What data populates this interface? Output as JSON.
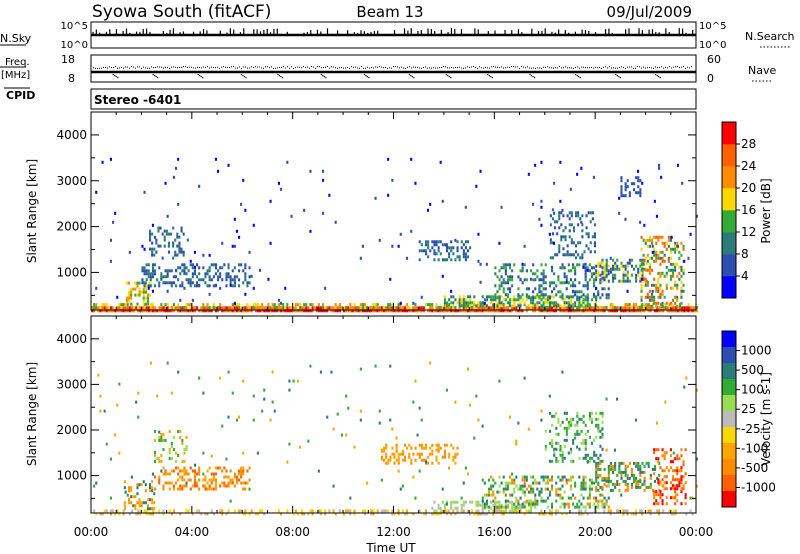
{
  "header": {
    "title": "Syowa South (fitACF)",
    "beam": "Beam 13",
    "date": "09/Jul/2009"
  },
  "status_panels": {
    "nsky_label": "N.Sky",
    "nsky_ticks": [
      "10^5",
      "10^0"
    ],
    "nsearch_label": "N.Search",
    "nsearch_ticks": [
      "10^5",
      "10^0"
    ],
    "freq_label_line1": "Freq.",
    "freq_label_line2": "[MHz]",
    "freq_ticks": [
      "18",
      "8"
    ],
    "nave_label": "Nave",
    "nave_ticks": [
      "60",
      "0"
    ],
    "cpid_label": "CPID",
    "cpid_value": "Stereo -6401"
  },
  "x_axis": {
    "title": "Time UT",
    "ticks": [
      "00:00",
      "04:00",
      "08:00",
      "12:00",
      "16:00",
      "20:00",
      "00:00"
    ],
    "range_hours": [
      0,
      24
    ]
  },
  "chart_data": [
    {
      "type": "heatmap",
      "parameter": "power",
      "ylabel": "Slant Range [km]",
      "yticks": [
        "1000",
        "2000",
        "3000",
        "4000"
      ],
      "ylim": [
        180,
        4500
      ],
      "colorbar_label": "Power [dB]",
      "colorbar_ticks": [
        "4",
        "8",
        "12",
        "16",
        "20",
        "24",
        "28"
      ],
      "colorbar_colors": [
        "#0000ff",
        "#2c4fb0",
        "#2b7c78",
        "#33aa33",
        "#ffd700",
        "#ff8c00",
        "#ff6000",
        "#ff0000"
      ],
      "regions": [
        {
          "t": [
            0.0,
            24.0
          ],
          "r": [
            180,
            260
          ],
          "dens": 0.9,
          "cols": [
            5,
            6,
            7
          ]
        },
        {
          "t": [
            0.0,
            24.0
          ],
          "r": [
            260,
            330
          ],
          "dens": 0.45,
          "cols": [
            3,
            4,
            5
          ]
        },
        {
          "t": [
            1.3,
            2.3
          ],
          "r": [
            300,
            800
          ],
          "dens": 0.4,
          "cols": [
            3,
            4,
            5
          ]
        },
        {
          "t": [
            2.0,
            6.3
          ],
          "r": [
            700,
            1200
          ],
          "dens": 0.38,
          "cols": [
            1,
            2
          ]
        },
        {
          "t": [
            2.3,
            3.8
          ],
          "r": [
            1300,
            2000
          ],
          "dens": 0.3,
          "cols": [
            1,
            2
          ]
        },
        {
          "t": [
            13.0,
            15.0
          ],
          "r": [
            1300,
            1700
          ],
          "dens": 0.4,
          "cols": [
            1,
            2
          ]
        },
        {
          "t": [
            14.0,
            20.0
          ],
          "r": [
            300,
            500
          ],
          "dens": 0.55,
          "cols": [
            2,
            3,
            4
          ]
        },
        {
          "t": [
            16.0,
            20.5
          ],
          "r": [
            450,
            1200
          ],
          "dens": 0.3,
          "cols": [
            1,
            2,
            3
          ]
        },
        {
          "t": [
            18.2,
            20.0
          ],
          "r": [
            1300,
            2400
          ],
          "dens": 0.28,
          "cols": [
            1,
            2
          ]
        },
        {
          "t": [
            20.0,
            22.0
          ],
          "r": [
            800,
            1300
          ],
          "dens": 0.45,
          "cols": [
            1,
            2,
            3,
            4
          ]
        },
        {
          "t": [
            21.8,
            23.5
          ],
          "r": [
            250,
            1800
          ],
          "dens": 0.35,
          "cols": [
            2,
            3,
            4,
            5,
            6
          ]
        },
        {
          "t": [
            21.0,
            21.8
          ],
          "r": [
            2700,
            3100
          ],
          "dens": 0.3,
          "cols": [
            1
          ]
        },
        {
          "t": [
            0.0,
            24.0
          ],
          "r": [
            300,
            3500
          ],
          "dens": 0.012,
          "cols": [
            0,
            1
          ]
        }
      ]
    },
    {
      "type": "heatmap",
      "parameter": "velocity",
      "ylabel": "Slant Range [km]",
      "yticks": [
        "1000",
        "2000",
        "3000",
        "4000"
      ],
      "ylim": [
        180,
        4500
      ],
      "colorbar_label": "Velocity [m s-1]",
      "colorbar_ticks": [
        "1000",
        "500",
        "100",
        "25",
        "-25",
        "-100",
        "-500",
        "-1000"
      ],
      "colorbar_colors": [
        "#0000ff",
        "#2c4fb0",
        "#2b7c78",
        "#33aa33",
        "#99dd55",
        "#bbbbbb",
        "#ffd700",
        "#ffa500",
        "#ff8c00",
        "#ff6000",
        "#ff0000"
      ],
      "regions": [
        {
          "t": [
            0.0,
            24.0
          ],
          "r": [
            180,
            260
          ],
          "dens": 0.4,
          "cols": [
            5,
            6,
            7
          ]
        },
        {
          "t": [
            13.5,
            17.5
          ],
          "r": [
            220,
            450
          ],
          "dens": 0.5,
          "cols": [
            4,
            5
          ]
        },
        {
          "t": [
            1.3,
            2.5
          ],
          "r": [
            300,
            900
          ],
          "dens": 0.35,
          "cols": [
            7,
            8,
            2
          ]
        },
        {
          "t": [
            2.5,
            6.3
          ],
          "r": [
            700,
            1200
          ],
          "dens": 0.38,
          "cols": [
            7,
            8,
            9
          ]
        },
        {
          "t": [
            2.5,
            3.8
          ],
          "r": [
            1300,
            2000
          ],
          "dens": 0.25,
          "cols": [
            3,
            4,
            7
          ]
        },
        {
          "t": [
            11.5,
            14.5
          ],
          "r": [
            1300,
            1700
          ],
          "dens": 0.35,
          "cols": [
            7,
            8
          ]
        },
        {
          "t": [
            15.5,
            20.5
          ],
          "r": [
            300,
            1000
          ],
          "dens": 0.35,
          "cols": [
            2,
            3,
            4,
            8
          ]
        },
        {
          "t": [
            18.0,
            20.3
          ],
          "r": [
            1300,
            2400
          ],
          "dens": 0.28,
          "cols": [
            2,
            3,
            4
          ]
        },
        {
          "t": [
            20.0,
            22.5
          ],
          "r": [
            700,
            1300
          ],
          "dens": 0.4,
          "cols": [
            2,
            3,
            8
          ]
        },
        {
          "t": [
            22.3,
            23.6
          ],
          "r": [
            400,
            1600
          ],
          "dens": 0.35,
          "cols": [
            8,
            9,
            10
          ]
        },
        {
          "t": [
            0.0,
            24.0
          ],
          "r": [
            300,
            3500
          ],
          "dens": 0.012,
          "cols": [
            2,
            3,
            7
          ]
        }
      ]
    }
  ]
}
